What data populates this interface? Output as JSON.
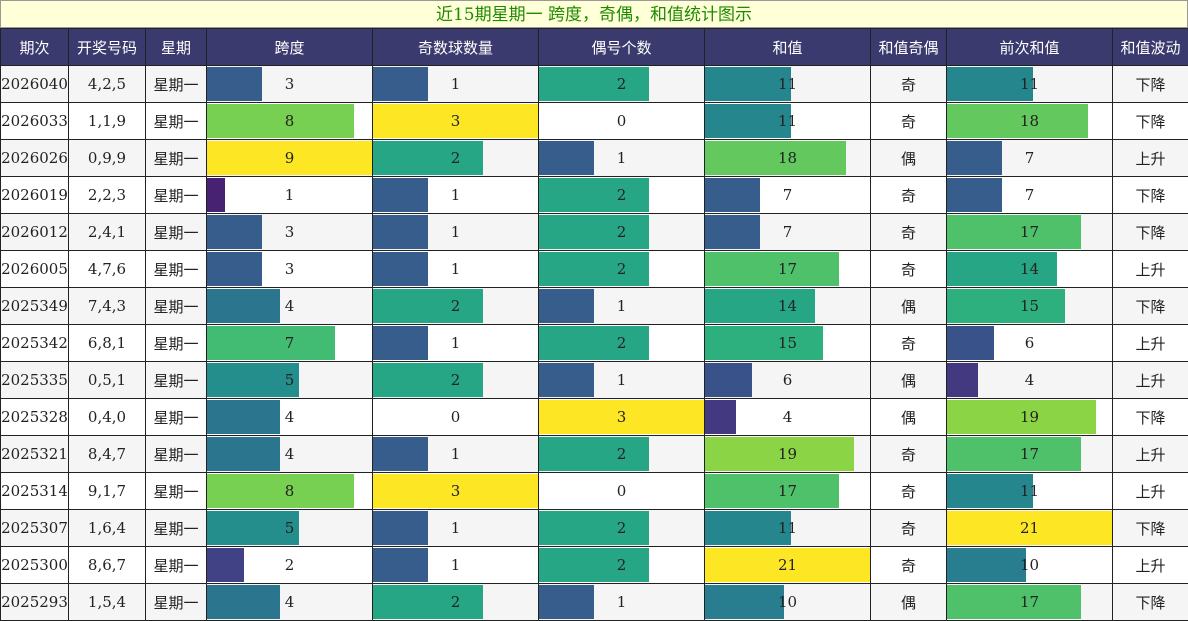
{
  "title": "近15期星期一 跨度，奇偶，和值统计图示",
  "headers": [
    "期次",
    "开奖号码",
    "星期",
    "跨度",
    "奇数球数量",
    "偶号个数",
    "和值",
    "和值奇偶",
    "前次和值",
    "和值波动"
  ],
  "bar_max": {
    "span": 9,
    "odd": 3,
    "even": 3,
    "sum": 21,
    "prev_sum": 21
  },
  "rows": [
    {
      "issue": "2026040",
      "numbers": "4,2,5",
      "weekday": "星期一",
      "span": 3,
      "odd": 1,
      "even": 2,
      "sum": 11,
      "parity": "奇",
      "prev_sum": 11,
      "trend": "下降"
    },
    {
      "issue": "2026033",
      "numbers": "1,1,9",
      "weekday": "星期一",
      "span": 8,
      "odd": 3,
      "even": 0,
      "sum": 11,
      "parity": "奇",
      "prev_sum": 18,
      "trend": "下降"
    },
    {
      "issue": "2026026",
      "numbers": "0,9,9",
      "weekday": "星期一",
      "span": 9,
      "odd": 2,
      "even": 1,
      "sum": 18,
      "parity": "偶",
      "prev_sum": 7,
      "trend": "上升"
    },
    {
      "issue": "2026019",
      "numbers": "2,2,3",
      "weekday": "星期一",
      "span": 1,
      "odd": 1,
      "even": 2,
      "sum": 7,
      "parity": "奇",
      "prev_sum": 7,
      "trend": "下降"
    },
    {
      "issue": "2026012",
      "numbers": "2,4,1",
      "weekday": "星期一",
      "span": 3,
      "odd": 1,
      "even": 2,
      "sum": 7,
      "parity": "奇",
      "prev_sum": 17,
      "trend": "下降"
    },
    {
      "issue": "2026005",
      "numbers": "4,7,6",
      "weekday": "星期一",
      "span": 3,
      "odd": 1,
      "even": 2,
      "sum": 17,
      "parity": "奇",
      "prev_sum": 14,
      "trend": "上升"
    },
    {
      "issue": "2025349",
      "numbers": "7,4,3",
      "weekday": "星期一",
      "span": 4,
      "odd": 2,
      "even": 1,
      "sum": 14,
      "parity": "偶",
      "prev_sum": 15,
      "trend": "下降"
    },
    {
      "issue": "2025342",
      "numbers": "6,8,1",
      "weekday": "星期一",
      "span": 7,
      "odd": 1,
      "even": 2,
      "sum": 15,
      "parity": "奇",
      "prev_sum": 6,
      "trend": "上升"
    },
    {
      "issue": "2025335",
      "numbers": "0,5,1",
      "weekday": "星期一",
      "span": 5,
      "odd": 2,
      "even": 1,
      "sum": 6,
      "parity": "偶",
      "prev_sum": 4,
      "trend": "上升"
    },
    {
      "issue": "2025328",
      "numbers": "0,4,0",
      "weekday": "星期一",
      "span": 4,
      "odd": 0,
      "even": 3,
      "sum": 4,
      "parity": "偶",
      "prev_sum": 19,
      "trend": "下降"
    },
    {
      "issue": "2025321",
      "numbers": "8,4,7",
      "weekday": "星期一",
      "span": 4,
      "odd": 1,
      "even": 2,
      "sum": 19,
      "parity": "奇",
      "prev_sum": 17,
      "trend": "上升"
    },
    {
      "issue": "2025314",
      "numbers": "9,1,7",
      "weekday": "星期一",
      "span": 8,
      "odd": 3,
      "even": 0,
      "sum": 17,
      "parity": "奇",
      "prev_sum": 11,
      "trend": "上升"
    },
    {
      "issue": "2025307",
      "numbers": "1,6,4",
      "weekday": "星期一",
      "span": 5,
      "odd": 1,
      "even": 2,
      "sum": 11,
      "parity": "奇",
      "prev_sum": 21,
      "trend": "下降"
    },
    {
      "issue": "2025300",
      "numbers": "8,6,7",
      "weekday": "星期一",
      "span": 2,
      "odd": 1,
      "even": 2,
      "sum": 21,
      "parity": "奇",
      "prev_sum": 10,
      "trend": "上升"
    },
    {
      "issue": "2025293",
      "numbers": "1,5,4",
      "weekday": "星期一",
      "span": 4,
      "odd": 2,
      "even": 1,
      "sum": 10,
      "parity": "偶",
      "prev_sum": 17,
      "trend": "下降"
    }
  ]
}
